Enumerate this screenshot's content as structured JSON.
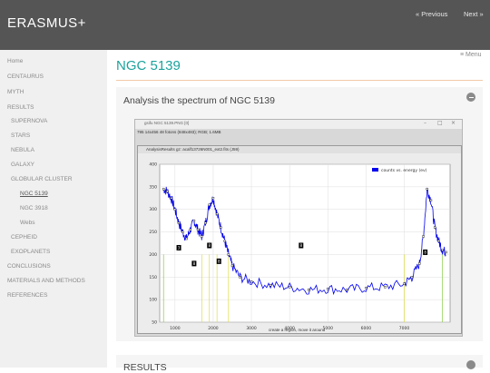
{
  "header": {
    "site_title": "ERASMUS+",
    "prev": "« Previous",
    "next": "Next »",
    "bg_color": "#555555"
  },
  "sidebar": {
    "items": [
      {
        "label": "Home"
      },
      {
        "label": "CENTAURUS"
      },
      {
        "label": "MYTH"
      },
      {
        "label": "RESULTS"
      },
      {
        "label": "SUPERNOVA"
      },
      {
        "label": "STARS"
      },
      {
        "label": "NEBULA"
      },
      {
        "label": "GALAXY"
      },
      {
        "label": "GLOBULAR CLUSTER"
      },
      {
        "label": "NGC 5139",
        "active": true
      },
      {
        "label": "NGC 3918"
      },
      {
        "label": "Webs"
      },
      {
        "label": "CEPHEID"
      },
      {
        "label": "EXOPLANETS"
      },
      {
        "label": "CONCLUSIONS"
      },
      {
        "label": "MATERIALS AND METHODS"
      },
      {
        "label": "REFERENCES"
      }
    ]
  },
  "main": {
    "page_title": "NGC 5139",
    "menu_label": "≡ Menu",
    "accent_color": "#1ba39c",
    "section": {
      "title": "Analysis the spectrum of NGC 5139",
      "screenshot": {
        "window_title": "gsifu NGC 5139.PNG [0]",
        "window_info": "795 14x456 48 fotons (848x483); RGB; 1.6MB",
        "inner_title": "AnalysisResults  gz: acalf13726N001_ext2.fits (J59)",
        "status": "create a region, move it around",
        "legend": "counts vs. energy (ev)",
        "markers": [
          "3",
          "8",
          "8",
          "8",
          "8",
          "8"
        ]
      }
    },
    "next_section_title": "RESULTS"
  },
  "chart_data": {
    "type": "line",
    "xlabel": "",
    "ylabel": "",
    "xlim": [
      600,
      8200
    ],
    "ylim": [
      50,
      400
    ],
    "x_ticks": [
      1000,
      2000,
      3000,
      4000,
      5000,
      6000,
      7000
    ],
    "y_ticks": [
      50,
      100,
      150,
      200,
      250,
      300,
      350,
      400
    ],
    "grid": true,
    "legend_position": "top-right",
    "series": [
      {
        "name": "counts vs. energy (ev)",
        "color": "#0000ee",
        "x": [
          700,
          800,
          900,
          1000,
          1100,
          1200,
          1300,
          1400,
          1500,
          1600,
          1700,
          1800,
          1900,
          2000,
          2100,
          2200,
          2300,
          2400,
          2500,
          2700,
          3000,
          3500,
          4000,
          4500,
          5000,
          5500,
          6000,
          6500,
          7000,
          7200,
          7400,
          7500,
          7600,
          7700,
          7800,
          7900,
          8000,
          8100
        ],
        "values": [
          345,
          340,
          325,
          300,
          270,
          250,
          235,
          255,
          275,
          255,
          240,
          270,
          310,
          325,
          290,
          260,
          230,
          200,
          175,
          150,
          140,
          132,
          128,
          122,
          124,
          122,
          126,
          128,
          135,
          150,
          180,
          240,
          345,
          320,
          260,
          230,
          210,
          205
        ]
      }
    ]
  }
}
